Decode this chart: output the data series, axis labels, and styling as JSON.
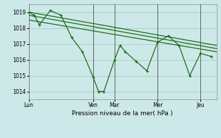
{
  "background_color": "#cde8e8",
  "grid_color": "#b0d0c8",
  "line_color": "#1a6b1a",
  "title": "Pression niveau de la mer( hPa )",
  "ylim": [
    1013.5,
    1019.5
  ],
  "yticks": [
    1014,
    1015,
    1016,
    1017,
    1018,
    1019
  ],
  "x_day_labels": [
    "Lun",
    "Ven",
    "Mar",
    "Mer",
    "Jeu"
  ],
  "x_day_positions": [
    0,
    12,
    16,
    24,
    32
  ],
  "xlim": [
    0,
    35
  ],
  "series1_x": [
    0,
    1,
    2,
    4,
    6,
    8,
    10,
    12,
    13,
    14,
    16,
    17,
    18,
    20,
    22,
    24,
    26,
    28,
    30,
    32,
    34
  ],
  "series1_y": [
    1019.0,
    1018.8,
    1018.2,
    1019.1,
    1018.8,
    1017.4,
    1016.5,
    1014.9,
    1014.0,
    1014.0,
    1016.0,
    1016.9,
    1016.5,
    1015.9,
    1015.3,
    1017.1,
    1017.5,
    1016.9,
    1015.0,
    1016.4,
    1016.2
  ],
  "series2_x": [
    0,
    35
  ],
  "series2_y": [
    1019.0,
    1016.9
  ],
  "series3_x": [
    0,
    35
  ],
  "series3_y": [
    1018.8,
    1016.7
  ],
  "series4_x": [
    0,
    35
  ],
  "series4_y": [
    1018.5,
    1016.5
  ],
  "figsize": [
    3.2,
    2.0
  ],
  "dpi": 100
}
